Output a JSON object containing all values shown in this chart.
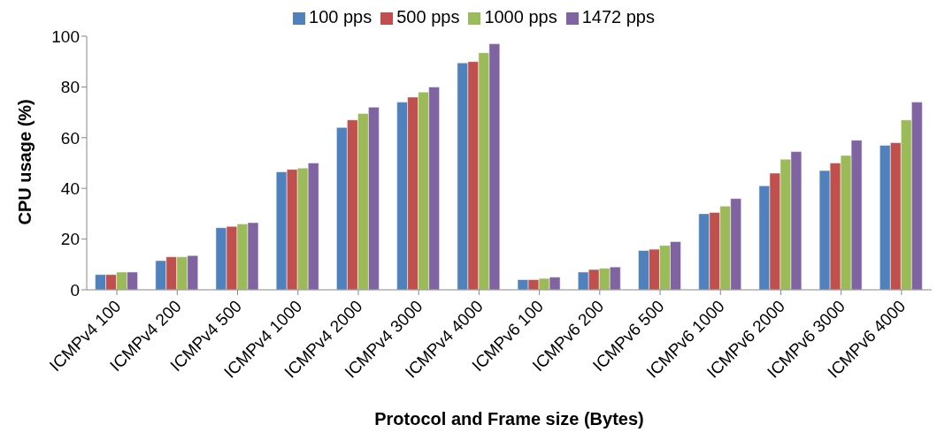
{
  "chart_data": {
    "type": "bar",
    "xlabel": "Protocol and Frame size (Bytes)",
    "ylabel": "CPU usage (%)",
    "categories": [
      "ICMPv4 100",
      "ICMPv4 200",
      "ICMPv4 500",
      "ICMPv4 1000",
      "ICMPv4 2000",
      "ICMPv4 3000",
      "ICMPv4 4000",
      "ICMPv6 100",
      "ICMPv6 200",
      "ICMPv6 500",
      "ICMPv6 1000",
      "ICMPv6 2000",
      "ICMPv6 3000",
      "ICMPv6 4000"
    ],
    "series": [
      {
        "name": "100 pps",
        "color": "#4f81bd",
        "values": [
          6,
          11.5,
          24.5,
          46.5,
          64,
          74,
          89.5,
          4,
          7,
          15.5,
          30,
          41,
          47,
          57
        ]
      },
      {
        "name": "500 pps",
        "color": "#c0504d",
        "values": [
          6,
          13,
          25,
          47.5,
          67,
          76,
          90,
          4,
          8,
          16,
          30.5,
          46,
          50,
          58
        ]
      },
      {
        "name": "1000 pps",
        "color": "#9bbb59",
        "values": [
          7,
          13,
          26,
          48,
          69.5,
          78,
          93.5,
          4.5,
          8.5,
          17.5,
          33,
          51.5,
          53,
          67
        ]
      },
      {
        "name": "1472 pps",
        "color": "#8064a2",
        "values": [
          7,
          13.5,
          26.5,
          50,
          72,
          80,
          97,
          5,
          9,
          19,
          36,
          54.5,
          59,
          74
        ]
      }
    ],
    "ylim": [
      0,
      100
    ],
    "yticks": [
      0,
      20,
      40,
      60,
      80,
      100
    ],
    "grid": false,
    "legend": "top"
  }
}
